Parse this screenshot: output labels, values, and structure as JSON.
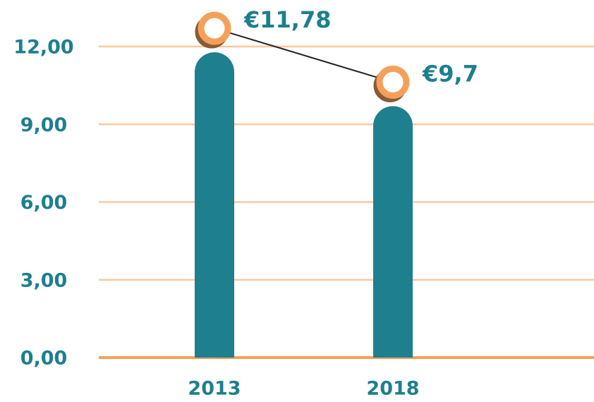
{
  "chart_data": {
    "type": "bar",
    "categories": [
      "2013",
      "2018"
    ],
    "values": [
      11.78,
      9.7
    ],
    "value_labels": [
      "€11,78",
      "€9,7"
    ],
    "color": "#1e7f8e",
    "marker_color": "#f5a05a",
    "ylim": [
      0,
      12
    ],
    "yticks": [
      {
        "value": 0,
        "label": "0,00"
      },
      {
        "value": 3,
        "label": "3,00"
      },
      {
        "value": 6,
        "label": "6,00"
      },
      {
        "value": 9,
        "label": "9,00"
      },
      {
        "value": 12,
        "label": "12,00"
      }
    ],
    "grid": true
  }
}
